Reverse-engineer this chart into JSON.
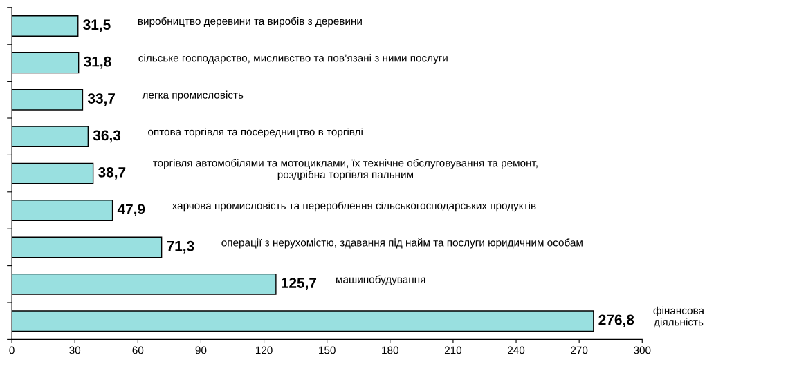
{
  "chart_data": {
    "type": "bar",
    "orientation": "horizontal",
    "categories": [
      null,
      null,
      null,
      null,
      null,
      null,
      null,
      null,
      null
    ],
    "annotations": [
      "виробництво деревини та виробів з деревини",
      "сільське господарство, мисливство та пов’язані з ними послуги",
      "легка промисловість",
      "оптова торгівля та посередництво в торгівлі",
      "торгівля автомобілями та мотоциклами, їх технічне обслуговування та ремонт,\nроздрібна торгівля пальним",
      "харчова промисловість та перероблення сільськогосподарських продуктів",
      "операції з нерухомістю, здавання під найм та послуги юридичним особам",
      "машинобудування",
      "фінансова\nдіяльність"
    ],
    "values": [
      31.5,
      31.8,
      33.7,
      36.3,
      38.7,
      47.9,
      71.3,
      125.7,
      276.8
    ],
    "value_labels": [
      "31,5",
      "31,8",
      "33,7",
      "36,3",
      "38,7",
      "47,9",
      "71,3",
      "125,7",
      "276,8"
    ],
    "color": "#99e0e0",
    "xlim": [
      0,
      300
    ],
    "xticks": [
      0,
      30,
      60,
      90,
      120,
      150,
      180,
      210,
      240,
      270,
      300
    ],
    "tick_labels": "x",
    "grid": false
  }
}
